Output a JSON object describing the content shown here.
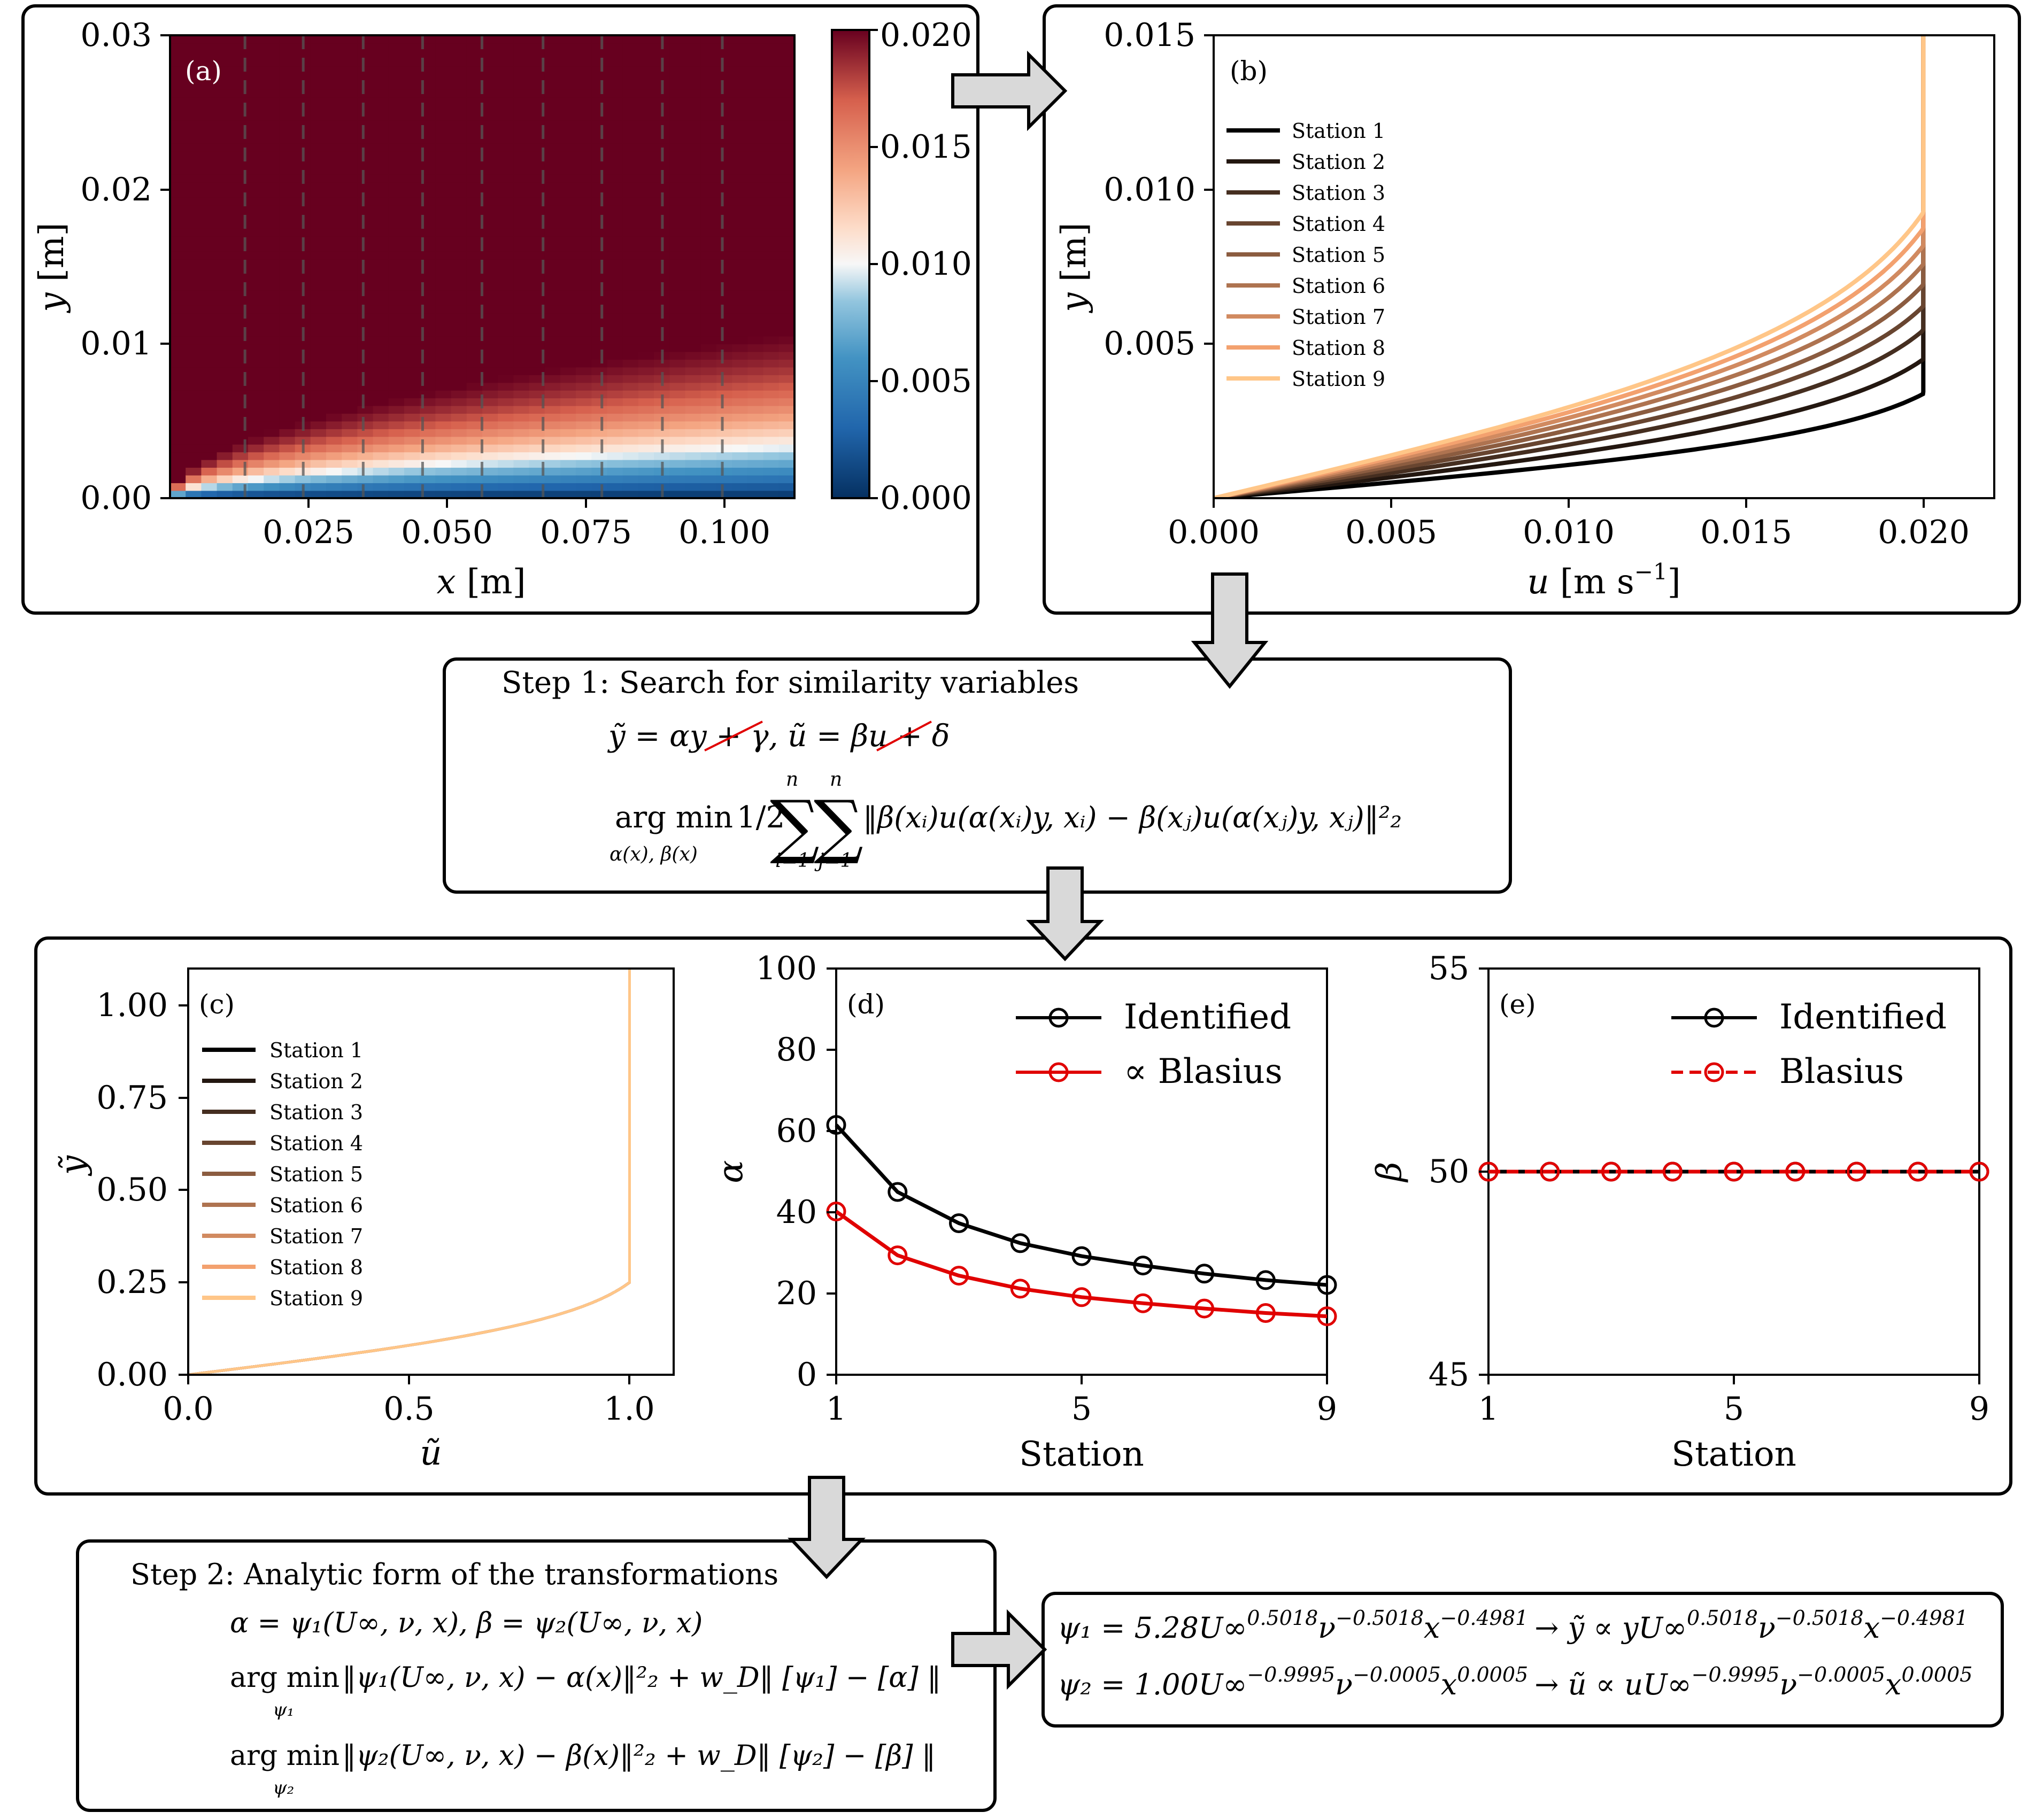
{
  "panel_a": {
    "label": "(a)",
    "xlabel_var": "x",
    "xlabel_unit": "[m]",
    "ylabel_var": "y",
    "ylabel_unit": "[m]",
    "xticks": [
      "0.025",
      "0.050",
      "0.075",
      "0.100"
    ],
    "yticks": [
      "0.00",
      "0.01",
      "0.02",
      "0.03"
    ],
    "colorbar_ticks": [
      "0.000",
      "0.005",
      "0.010",
      "0.015",
      "0.020"
    ],
    "colors": {
      "low": "#053061",
      "mid": "#f7f7f7",
      "high": "#67001f"
    }
  },
  "panel_b": {
    "label": "(b)",
    "xlabel_var": "u",
    "xlabel_unit": "[m s",
    "xlabel_exp": "−1",
    "xlabel_close": "]",
    "ylabel_var": "y",
    "ylabel_unit": "[m]",
    "xticks": [
      "0.000",
      "0.005",
      "0.010",
      "0.015",
      "0.020"
    ],
    "yticks": [
      "0.005",
      "0.010",
      "0.015"
    ],
    "legend": [
      "Station 1",
      "Station 2",
      "Station 3",
      "Station 4",
      "Station 5",
      "Station 6",
      "Station 7",
      "Station 8",
      "Station 9"
    ]
  },
  "station_colors": [
    "#000000",
    "#231710",
    "#452e20",
    "#684530",
    "#8b5c40",
    "#ae7350",
    "#d18a60",
    "#f3a16f",
    "#ffc688"
  ],
  "step1": {
    "title": "Step 1:  Search for similarity variables",
    "eq1": "ỹ = αy + γ,  ũ = βu + δ",
    "argmin": "arg min",
    "argmin_sub": "α(x), β(x)",
    "half": "1/2",
    "sum_upper": "n",
    "sum_lower_i": "i=1",
    "sum_lower_j": "j=1",
    "norm_expr": "‖β(xᵢ)u(α(xᵢ)y, xᵢ) − β(xⱼ)u(α(xⱼ)y, xⱼ)‖²₂"
  },
  "panel_c": {
    "label": "(c)",
    "xlabel": "ũ",
    "ylabel": "ỹ",
    "xticks": [
      "0.0",
      "0.5",
      "1.0"
    ],
    "yticks": [
      "0.00",
      "0.25",
      "0.50",
      "0.75",
      "1.00"
    ],
    "legend": [
      "Station 1",
      "Station 2",
      "Station 3",
      "Station 4",
      "Station 5",
      "Station 6",
      "Station 7",
      "Station 8",
      "Station 9"
    ]
  },
  "panel_d": {
    "label": "(d)",
    "ylabel": "α",
    "xlabel": "Station",
    "xticks": [
      "1",
      "5",
      "9"
    ],
    "yticks": [
      "0",
      "20",
      "40",
      "60",
      "80",
      "100"
    ],
    "legend": [
      "Identified",
      "∝ Blasius"
    ]
  },
  "panel_e": {
    "label": "(e)",
    "ylabel": "β",
    "xlabel": "Station",
    "xticks": [
      "1",
      "5",
      "9"
    ],
    "yticks": [
      "45",
      "50",
      "55"
    ],
    "legend": [
      "Identified",
      "Blasius"
    ]
  },
  "chart_data": [
    {
      "type": "heatmap",
      "title": "(a)",
      "xlabel": "x [m]",
      "ylabel": "y [m]",
      "xlim": [
        0.0,
        0.1125
      ],
      "ylim": [
        0.0,
        0.03
      ],
      "colorbar_range": [
        0.0,
        0.02
      ],
      "station_x": [
        0.0135,
        0.024,
        0.0348,
        0.0455,
        0.0562,
        0.0672,
        0.0778,
        0.0887,
        0.0995
      ]
    },
    {
      "type": "line",
      "title": "(b)",
      "xlabel": "u [m s^-1]",
      "ylabel": "y [m]",
      "xlim": [
        0.0,
        0.022
      ],
      "ylim": [
        0.0,
        0.015
      ],
      "series": [
        {
          "name": "Station 1",
          "delta": 0.00338
        },
        {
          "name": "Station 2",
          "delta": 0.0045
        },
        {
          "name": "Station 3",
          "delta": 0.00544
        },
        {
          "name": "Station 4",
          "delta": 0.00622
        },
        {
          "name": "Station 5",
          "delta": 0.00692
        },
        {
          "name": "Station 6",
          "delta": 0.00758
        },
        {
          "name": "Station 7",
          "delta": 0.00818
        },
        {
          "name": "Station 8",
          "delta": 0.00874
        },
        {
          "name": "Station 9",
          "delta": 0.00926
        }
      ]
    },
    {
      "type": "line",
      "title": "(c)",
      "xlabel": "ũ",
      "ylabel": "ỹ",
      "xlim": [
        0.0,
        1.1
      ],
      "ylim": [
        0.0,
        1.1
      ],
      "collapsed_delta": 0.25
    },
    {
      "type": "line",
      "title": "(d)",
      "xlabel": "Station",
      "ylabel": "α",
      "x": [
        1,
        2,
        3,
        4,
        5,
        6,
        7,
        8,
        9
      ],
      "xlim": [
        1,
        9
      ],
      "ylim": [
        0,
        100
      ],
      "series": [
        {
          "name": "Identified",
          "values": [
            61.5,
            45.0,
            37.3,
            32.4,
            29.2,
            26.9,
            24.9,
            23.3,
            22.1
          ]
        },
        {
          "name": "∝ Blasius",
          "values": [
            40.2,
            29.4,
            24.4,
            21.2,
            19.1,
            17.6,
            16.3,
            15.2,
            14.4
          ]
        }
      ]
    },
    {
      "type": "line",
      "title": "(e)",
      "xlabel": "Station",
      "ylabel": "β",
      "x": [
        1,
        2,
        3,
        4,
        5,
        6,
        7,
        8,
        9
      ],
      "xlim": [
        1,
        9
      ],
      "ylim": [
        45,
        55
      ],
      "series": [
        {
          "name": "Identified",
          "values": [
            50,
            50,
            50,
            50,
            50,
            50,
            50,
            50,
            50
          ]
        },
        {
          "name": "Blasius",
          "values": [
            50,
            50,
            50,
            50,
            50,
            50,
            50,
            50,
            50
          ]
        }
      ]
    }
  ],
  "step2": {
    "title": "Step 2:  Analytic form of the transformations",
    "eq1": "α = ψ₁(U∞, ν, x),  β = ψ₂(U∞, ν, x)",
    "argmin": "arg min",
    "sub1": "ψ₁",
    "sub2": "ψ₂",
    "eq2": "‖ψ₁(U∞, ν, x) − α(x)‖²₂ + w_D‖ [ψ₁] − [α] ‖",
    "eq3": "‖ψ₂(U∞, ν, x) − β(x)‖²₂ + w_D‖ [ψ₂] − [β] ‖"
  },
  "result": {
    "psi1_lhs": "ψ₁ = 5.28U∞",
    "psi1_e1": "0.5018",
    "psi1_nu": "ν",
    "psi1_e2": "−0.5018",
    "psi1_x": "x",
    "psi1_e3": "−0.4981",
    "psi1_arrow": "→ ỹ ∝ yU∞",
    "psi2_lhs": "ψ₂ = 1.00U∞",
    "psi2_e1": "−0.9995",
    "psi2_nu": "ν",
    "psi2_e2": "−0.0005",
    "psi2_x": "x",
    "psi2_e3": "0.0005",
    "psi2_arrow": "→ ũ ∝ uU∞"
  }
}
